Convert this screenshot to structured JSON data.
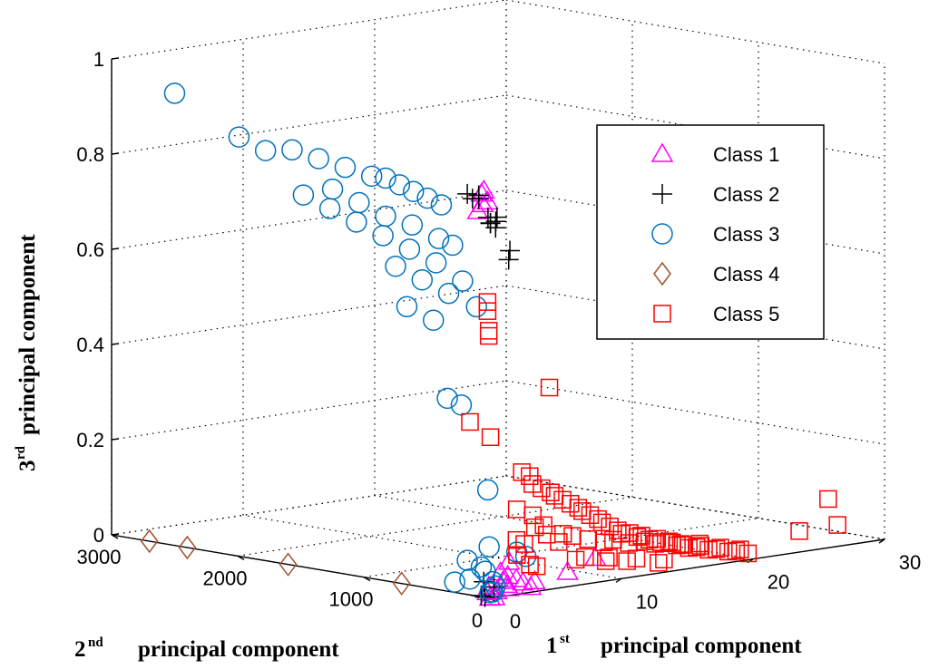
{
  "chart_data": {
    "type": "scatter3d",
    "axes": {
      "x": {
        "title": "principal component",
        "ordinal": "1",
        "sup": "st",
        "ticks": [
          0,
          10,
          20,
          30
        ],
        "tick_labels": [
          "0",
          "10",
          "20",
          "30"
        ],
        "range": [
          0,
          30
        ]
      },
      "y": {
        "title": "principal component",
        "ordinal": "2",
        "sup": "nd",
        "ticks": [
          0,
          1000,
          2000,
          3000
        ],
        "tick_labels": [
          "0",
          "1000",
          "2000",
          "3000"
        ],
        "range": [
          0,
          3000
        ]
      },
      "z": {
        "title": "principal component",
        "ordinal": "3",
        "sup": "rd",
        "ticks": [
          0,
          0.2,
          0.4,
          0.6,
          0.8,
          1
        ],
        "tick_labels": [
          "0",
          "0.2",
          "0.4",
          "0.6",
          "0.8",
          "1"
        ],
        "range": [
          0,
          1
        ]
      }
    },
    "legend": {
      "position": "top-right"
    },
    "grid": true,
    "series": [
      {
        "name": "Class 1",
        "marker": "triangle",
        "color": "#ff00ff",
        "points": [
          [
            0.5,
            100,
            0.85
          ],
          [
            0.8,
            150,
            0.84
          ],
          [
            0.3,
            50,
            0.83
          ],
          [
            1.0,
            200,
            0.8
          ],
          [
            0.6,
            120,
            0.82
          ],
          [
            0.2,
            40,
            0.01
          ],
          [
            0.5,
            60,
            0.02
          ],
          [
            0.8,
            30,
            0.01
          ],
          [
            1.2,
            20,
            0.03
          ],
          [
            1.6,
            30,
            0.02
          ],
          [
            2.2,
            20,
            0.03
          ],
          [
            2.8,
            30,
            0.02
          ],
          [
            3.2,
            10,
            0.01
          ],
          [
            3.6,
            20,
            0.02
          ],
          [
            2.0,
            60,
            0.01
          ],
          [
            0.9,
            10,
            0.05
          ],
          [
            1.5,
            15,
            0.04
          ],
          [
            0.4,
            5,
            0.0
          ],
          [
            0.1,
            10,
            0.0
          ],
          [
            6.0,
            10,
            0.03
          ],
          [
            8.2,
            20,
            0.05
          ],
          [
            1.5,
            5,
            0.07
          ]
        ]
      },
      {
        "name": "Class 2",
        "marker": "plus",
        "color": "#000000",
        "points": [
          [
            0.2,
            200,
            0.84
          ],
          [
            0.4,
            180,
            0.83
          ],
          [
            0.9,
            90,
            0.78
          ],
          [
            1.0,
            100,
            0.78
          ],
          [
            1.2,
            80,
            0.77
          ],
          [
            1.5,
            100,
            0.79
          ],
          [
            1.6,
            120,
            0.78
          ],
          [
            2.0,
            50,
            0.72
          ],
          [
            2.1,
            70,
            0.7
          ],
          [
            0.3,
            120,
            0.84
          ],
          [
            0.6,
            150,
            0.83
          ],
          [
            1.1,
            130,
            0.79
          ],
          [
            0.3,
            100,
            0.0
          ],
          [
            0.1,
            50,
            0.0
          ],
          [
            0.3,
            80,
            0.03
          ],
          [
            0.6,
            30,
            0.02
          ]
        ]
      },
      {
        "name": "Class 3",
        "marker": "circle",
        "color": "#0072bd",
        "points": [
          [
            0.0,
            2500,
            0.95
          ],
          [
            0.1,
            2000,
            0.88
          ],
          [
            0.2,
            1800,
            0.86
          ],
          [
            0.3,
            1600,
            0.87
          ],
          [
            0.4,
            1400,
            0.86
          ],
          [
            0.5,
            1200,
            0.85
          ],
          [
            0.6,
            1000,
            0.84
          ],
          [
            0.7,
            900,
            0.84
          ],
          [
            0.8,
            800,
            0.83
          ],
          [
            0.9,
            700,
            0.82
          ],
          [
            1.0,
            600,
            0.81
          ],
          [
            1.1,
            500,
            0.8
          ],
          [
            0.5,
            1300,
            0.8
          ],
          [
            0.6,
            1100,
            0.78
          ],
          [
            0.7,
            900,
            0.76
          ],
          [
            0.8,
            700,
            0.75
          ],
          [
            0.9,
            500,
            0.73
          ],
          [
            1.0,
            400,
            0.72
          ],
          [
            0.2,
            1500,
            0.78
          ],
          [
            0.3,
            1300,
            0.76
          ],
          [
            0.4,
            1100,
            0.74
          ],
          [
            0.5,
            900,
            0.72
          ],
          [
            0.6,
            700,
            0.7
          ],
          [
            0.7,
            500,
            0.68
          ],
          [
            0.5,
            800,
            0.66
          ],
          [
            0.6,
            600,
            0.64
          ],
          [
            0.7,
            400,
            0.62
          ],
          [
            0.8,
            300,
            0.65
          ],
          [
            0.9,
            200,
            0.6
          ],
          [
            0.4,
            700,
            0.58
          ],
          [
            0.5,
            500,
            0.56
          ],
          [
            0.6,
            400,
            0.4
          ],
          [
            0.7,
            300,
            0.39
          ],
          [
            0.8,
            100,
            0.22
          ],
          [
            0.9,
            100,
            0.1
          ],
          [
            0.2,
            200,
            0.07
          ],
          [
            0.3,
            100,
            0.06
          ],
          [
            0.6,
            100,
            0.05
          ],
          [
            0.7,
            50,
            0.03
          ],
          [
            0.2,
            300,
            0.02
          ],
          [
            0.4,
            200,
            0.03
          ],
          [
            0.9,
            50,
            0.02
          ],
          [
            0.5,
            30,
            0.01
          ],
          [
            0.2,
            20,
            0.01
          ],
          [
            3.0,
            100,
            0.08
          ],
          [
            3.5,
            80,
            0.07
          ]
        ]
      },
      {
        "name": "Class 4",
        "marker": "diamond",
        "color": "#a0522d",
        "points": [
          [
            0,
            2700,
            0.0
          ],
          [
            0,
            2400,
            0.0
          ],
          [
            0,
            1600,
            0.0
          ],
          [
            0,
            700,
            0.0
          ]
        ]
      },
      {
        "name": "Class 5",
        "marker": "square",
        "color": "#ff0000",
        "points": [
          [
            0.3,
            50,
            0.6
          ],
          [
            0.2,
            30,
            0.56
          ],
          [
            0.1,
            20,
            0.55
          ],
          [
            0.2,
            40,
            0.62
          ],
          [
            5,
            50,
            0.42
          ],
          [
            0.4,
            200,
            0.36
          ],
          [
            1,
            100,
            0.33
          ],
          [
            3,
            60,
            0.25
          ],
          [
            3.5,
            50,
            0.24
          ],
          [
            4,
            80,
            0.22
          ],
          [
            4.5,
            60,
            0.21
          ],
          [
            5,
            40,
            0.2
          ],
          [
            5.5,
            60,
            0.19
          ],
          [
            6,
            50,
            0.18
          ],
          [
            6.5,
            40,
            0.17
          ],
          [
            7,
            30,
            0.16
          ],
          [
            7.5,
            50,
            0.15
          ],
          [
            8,
            40,
            0.14
          ],
          [
            8.5,
            30,
            0.13
          ],
          [
            9,
            50,
            0.12
          ],
          [
            9.5,
            40,
            0.11
          ],
          [
            10,
            30,
            0.1
          ],
          [
            10.5,
            50,
            0.09
          ],
          [
            11,
            40,
            0.09
          ],
          [
            11.5,
            30,
            0.08
          ],
          [
            12,
            50,
            0.08
          ],
          [
            12.5,
            40,
            0.07
          ],
          [
            13,
            30,
            0.07
          ],
          [
            13.5,
            50,
            0.06
          ],
          [
            14,
            40,
            0.06
          ],
          [
            14.5,
            30,
            0.05
          ],
          [
            15,
            50,
            0.05
          ],
          [
            15.5,
            40,
            0.04
          ],
          [
            16,
            30,
            0.04
          ],
          [
            16.5,
            50,
            0.04
          ],
          [
            17,
            40,
            0.03
          ],
          [
            17.5,
            30,
            0.03
          ],
          [
            18,
            50,
            0.03
          ],
          [
            18.5,
            40,
            0.02
          ],
          [
            19,
            30,
            0.02
          ],
          [
            19.5,
            50,
            0.02
          ],
          [
            20,
            40,
            0.01
          ],
          [
            6,
            200,
            0.12
          ],
          [
            7,
            150,
            0.1
          ],
          [
            8,
            180,
            0.09
          ],
          [
            9,
            160,
            0.08
          ],
          [
            10,
            140,
            0.07
          ],
          [
            11,
            170,
            0.07
          ],
          [
            12,
            150,
            0.06
          ],
          [
            13,
            130,
            0.06
          ],
          [
            14,
            150,
            0.05
          ],
          [
            15,
            120,
            0.05
          ],
          [
            16,
            140,
            0.04
          ],
          [
            17,
            110,
            0.04
          ],
          [
            7,
            50,
            0.05
          ],
          [
            8,
            80,
            0.05
          ],
          [
            9,
            20,
            0.04
          ],
          [
            10,
            100,
            0.04
          ],
          [
            11,
            60,
            0.03
          ],
          [
            12,
            90,
            0.03
          ],
          [
            13,
            20,
            0.02
          ],
          [
            14,
            80,
            0.02
          ],
          [
            3,
            40,
            0.1
          ],
          [
            3.5,
            150,
            0.07
          ],
          [
            4,
            100,
            0.05
          ],
          [
            5,
            150,
            0.04
          ],
          [
            4,
            60,
            0.13
          ],
          [
            5,
            70,
            0.11
          ],
          [
            6,
            80,
            0.09
          ],
          [
            24,
            50,
            0.04
          ],
          [
            26,
            30,
            0.1
          ],
          [
            27,
            60,
            0.04
          ],
          [
            2.5,
            50,
            0.11
          ],
          [
            3,
            100,
            0.17
          ],
          [
            4.5,
            130,
            0.15
          ]
        ]
      }
    ]
  }
}
